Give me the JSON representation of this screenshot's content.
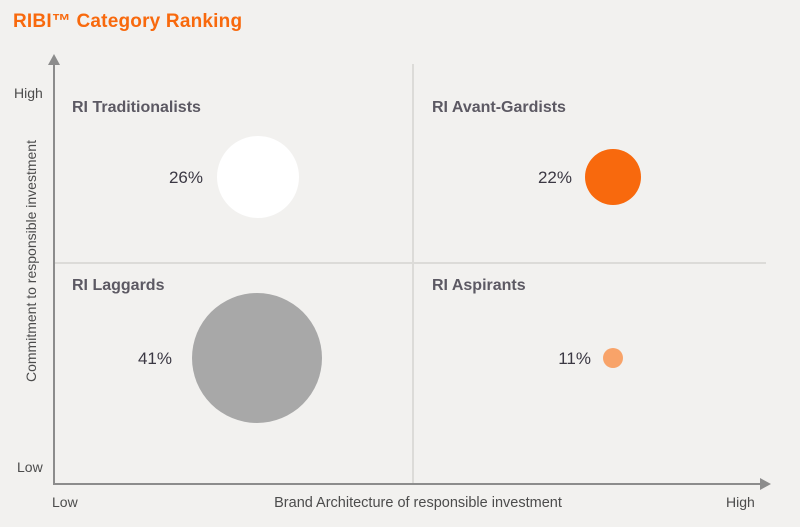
{
  "title": "RIBI™ Category Ranking",
  "axes": {
    "y_title": "Commitment to responsible investment",
    "x_title": "Brand Architecture of responsible investment",
    "y_high": "High",
    "y_low": "Low",
    "x_low": "Low",
    "x_high": "High"
  },
  "quadrants": [
    {
      "id": "top-left",
      "label": "RI Traditionalists",
      "value": "26%",
      "bubble_color": "#FFFFFF"
    },
    {
      "id": "top-right",
      "label": "RI Avant-Gardists",
      "value": "22%",
      "bubble_color": "#F8690D"
    },
    {
      "id": "bottom-left",
      "label": "RI Laggards",
      "value": "41%",
      "bubble_color": "#A8A8A8"
    },
    {
      "id": "bottom-right",
      "label": "RI Aspirants",
      "value": "11%",
      "bubble_color": "#F8A369"
    }
  ],
  "colors": {
    "background": "#F2F1EF",
    "title_orange": "#F8690D",
    "axis_gray": "#8C8C8C",
    "divider_gray": "#DCDBD8",
    "quadrant_label_gray": "#5C5963",
    "value_text": "#3B3843"
  },
  "chart_data": {
    "type": "scatter",
    "subtype": "quadrant-bubble",
    "title": "RIBI™ Category Ranking",
    "xlabel": "Brand Architecture of responsible investment",
    "ylabel": "Commitment to responsible investment",
    "x_axis_ticks": [
      "Low",
      "High"
    ],
    "y_axis_ticks": [
      "Low",
      "High"
    ],
    "grid": false,
    "legend": false,
    "points": [
      {
        "quadrant": "top-left",
        "category": "RI Traditionalists",
        "value_pct": 26,
        "x": "low",
        "y": "high",
        "color": "#FFFFFF"
      },
      {
        "quadrant": "top-right",
        "category": "RI Avant-Gardists",
        "value_pct": 22,
        "x": "high",
        "y": "high",
        "color": "#F8690D"
      },
      {
        "quadrant": "bottom-left",
        "category": "RI Laggards",
        "value_pct": 41,
        "x": "low",
        "y": "low",
        "color": "#A8A8A8"
      },
      {
        "quadrant": "bottom-right",
        "category": "RI Aspirants",
        "value_pct": 11,
        "x": "high",
        "y": "low",
        "color": "#F8A369"
      }
    ],
    "note": "Bubble area scales with percentage value"
  }
}
